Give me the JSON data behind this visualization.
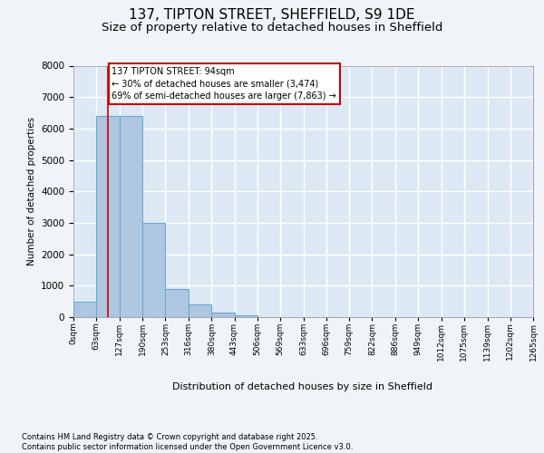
{
  "title_line1": "137, TIPTON STREET, SHEFFIELD, S9 1DE",
  "title_line2": "Size of property relative to detached houses in Sheffield",
  "xlabel": "Distribution of detached houses by size in Sheffield",
  "ylabel": "Number of detached properties",
  "footnote": "Contains HM Land Registry data © Crown copyright and database right 2025.\nContains public sector information licensed under the Open Government Licence v3.0.",
  "bar_color": "#aec6e0",
  "bar_edge_color": "#6aaad4",
  "background_color": "#dce9f5",
  "grid_color": "#ffffff",
  "fig_background": "#f0f4f8",
  "bin_edges": [
    0,
    63,
    127,
    190,
    253,
    316,
    380,
    443,
    506,
    569,
    633,
    696,
    759,
    822,
    886,
    949,
    1012,
    1075,
    1139,
    1202,
    1265
  ],
  "bin_labels": [
    "0sqm",
    "63sqm",
    "127sqm",
    "190sqm",
    "253sqm",
    "316sqm",
    "380sqm",
    "443sqm",
    "506sqm",
    "569sqm",
    "633sqm",
    "696sqm",
    "759sqm",
    "822sqm",
    "886sqm",
    "949sqm",
    "1012sqm",
    "1075sqm",
    "1139sqm",
    "1202sqm",
    "1265sqm"
  ],
  "bar_heights": [
    500,
    6400,
    6400,
    3000,
    900,
    400,
    130,
    50,
    10,
    0,
    0,
    0,
    0,
    0,
    0,
    0,
    0,
    0,
    0,
    0
  ],
  "ylim": [
    0,
    8000
  ],
  "yticks": [
    0,
    1000,
    2000,
    3000,
    4000,
    5000,
    6000,
    7000,
    8000
  ],
  "property_label": "137 TIPTON STREET: 94sqm",
  "annotation_line1": "← 30% of detached houses are smaller (3,474)",
  "annotation_line2": "69% of semi-detached houses are larger (7,863) →",
  "vline_x": 94,
  "vline_color": "#cc0000",
  "annotation_box_edgecolor": "#cc0000",
  "title_fontsize": 11,
  "subtitle_fontsize": 9.5,
  "footnote_text": "Contains HM Land Registry data © Crown copyright and database right 2025.\nContains public sector information licensed under the Open Government Licence v3.0."
}
